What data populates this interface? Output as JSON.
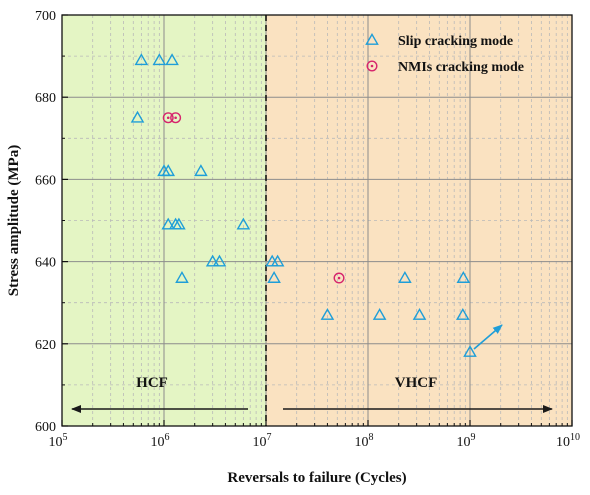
{
  "chart_data": {
    "type": "scatter",
    "xlabel": "Reversals to failure (Cycles)",
    "ylabel": "Stress amplitude (MPa)",
    "x_scale": "log",
    "xlim": [
      100000,
      10000000000
    ],
    "ylim": [
      600,
      700
    ],
    "x_tick_labels": [
      "10^5",
      "10^6",
      "10^7",
      "10^8",
      "10^9",
      "10^10"
    ],
    "y_ticks": [
      600,
      620,
      640,
      660,
      680,
      700
    ],
    "grid": true,
    "legend_position": "top-right",
    "regions": [
      {
        "label": "HCF",
        "x_range": [
          100000,
          10000000
        ],
        "color": "#e4f5c4"
      },
      {
        "label": "VHCF",
        "x_range": [
          10000000,
          10000000000
        ],
        "color": "#fae2c1"
      }
    ],
    "boundary_line_x": 10000000,
    "colors": {
      "slip": "#1f9ed8",
      "nmi": "#d6246c",
      "arrow": "#1a1a1a"
    },
    "series": [
      {
        "name": "Slip cracking mode",
        "marker": "triangle",
        "points": [
          [
            600000,
            689
          ],
          [
            900000,
            689
          ],
          [
            1200000,
            689
          ],
          [
            550000,
            675
          ],
          [
            1000000,
            662
          ],
          [
            1100000,
            662
          ],
          [
            2300000,
            662
          ],
          [
            1100000,
            649
          ],
          [
            1300000,
            649
          ],
          [
            1400000,
            649
          ],
          [
            6000000,
            649
          ],
          [
            3000000,
            640
          ],
          [
            3500000,
            640
          ],
          [
            11500000,
            640
          ],
          [
            13000000,
            640
          ],
          [
            1500000,
            636
          ],
          [
            12000000,
            636
          ],
          [
            230000000,
            636
          ],
          [
            860000000,
            636
          ],
          [
            40000000,
            627
          ],
          [
            130000000,
            627
          ],
          [
            320000000,
            627
          ],
          [
            850000000,
            627
          ],
          [
            1000000000,
            618
          ]
        ]
      },
      {
        "name": "NMIs cracking mode",
        "marker": "circle",
        "points": [
          [
            1100000,
            675
          ],
          [
            1300000,
            675
          ],
          [
            52000000,
            636
          ]
        ]
      }
    ]
  }
}
